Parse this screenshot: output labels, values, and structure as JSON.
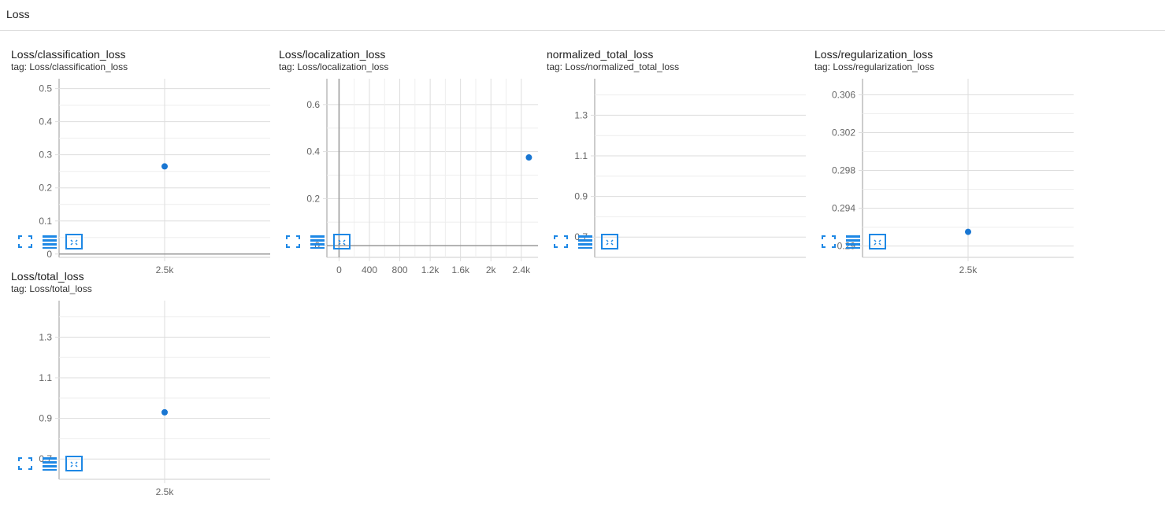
{
  "header": {
    "title": "Loss"
  },
  "colors": {
    "point": "#1976d2",
    "grid": "#dddddd",
    "axis": "#999999",
    "zero_line": "#999999",
    "icon": "#1e88e5"
  },
  "toolbar_icons": [
    "fullscreen-icon",
    "data-list-icon",
    "fit-domain-icon"
  ],
  "cards": [
    {
      "title": "Loss/classification_loss",
      "tag": "tag: Loss/classification_loss",
      "chart_data": {
        "type": "scatter",
        "x": [
          2500
        ],
        "y": [
          0.265
        ],
        "xlim": [
          2300,
          2700
        ],
        "ylim": [
          -0.01,
          0.53
        ],
        "xticks": [
          2500
        ],
        "xtick_labels": [
          "2.5k"
        ],
        "yticks": [
          0,
          0.1,
          0.2,
          0.3,
          0.4,
          0.5
        ],
        "ytick_labels": [
          "0",
          "0.1",
          "0.2",
          "0.3",
          "0.4",
          "0.5"
        ],
        "minor_yticks": [
          0.05,
          0.15,
          0.25,
          0.35,
          0.45
        ],
        "grid": true,
        "zero_line": true
      }
    },
    {
      "title": "Loss/localization_loss",
      "tag": "tag: Loss/localization_loss",
      "chart_data": {
        "type": "scatter",
        "x": [
          2500
        ],
        "y": [
          0.375
        ],
        "xlim": [
          -160,
          2620
        ],
        "ylim": [
          -0.05,
          0.71
        ],
        "xticks": [
          0,
          400,
          800,
          1200,
          1600,
          2000,
          2400
        ],
        "xtick_labels": [
          "0",
          "400",
          "800",
          "1.2k",
          "1.6k",
          "2k",
          "2.4k"
        ],
        "minor_xticks": [
          200,
          600,
          1000,
          1400,
          1800,
          2200
        ],
        "yticks": [
          0,
          0.2,
          0.4,
          0.6
        ],
        "ytick_labels": [
          "0",
          "0.2",
          "0.4",
          "0.6"
        ],
        "minor_yticks": [
          0.1,
          0.3,
          0.5
        ],
        "grid": true,
        "zero_line": true,
        "x_zero_line": true
      }
    },
    {
      "title": "normalized_total_loss",
      "tag": "tag: Loss/normalized_total_loss",
      "chart_data": {
        "type": "scatter",
        "x": [],
        "y": [],
        "xlim": [
          0,
          1
        ],
        "ylim": [
          0.6,
          1.48
        ],
        "xticks": [],
        "xtick_labels": [],
        "yticks": [
          0.7,
          0.9,
          1.1,
          1.3
        ],
        "ytick_labels": [
          "0.7",
          "0.9",
          "1.1",
          "1.3"
        ],
        "minor_yticks": [
          0.8,
          1.0,
          1.2,
          1.4
        ],
        "grid": true,
        "zero_line": false
      }
    },
    {
      "title": "Loss/regularization_loss",
      "tag": "tag: Loss/regularization_loss",
      "chart_data": {
        "type": "scatter",
        "x": [
          2500
        ],
        "y": [
          0.2915
        ],
        "xlim": [
          2300,
          2700
        ],
        "ylim": [
          0.2888,
          0.3077
        ],
        "xticks": [
          2500
        ],
        "xtick_labels": [
          "2.5k"
        ],
        "yticks": [
          0.29,
          0.294,
          0.298,
          0.302,
          0.306
        ],
        "ytick_labels": [
          "0.29",
          "0.294",
          "0.298",
          "0.302",
          "0.306"
        ],
        "minor_yticks": [
          0.292,
          0.296,
          0.3,
          0.304
        ],
        "grid": true,
        "zero_line": false
      }
    },
    {
      "title": "Loss/total_loss",
      "tag": "tag: Loss/total_loss",
      "chart_data": {
        "type": "scatter",
        "x": [
          2500
        ],
        "y": [
          0.93
        ],
        "xlim": [
          2300,
          2700
        ],
        "ylim": [
          0.6,
          1.48
        ],
        "xticks": [
          2500
        ],
        "xtick_labels": [
          "2.5k"
        ],
        "yticks": [
          0.7,
          0.9,
          1.1,
          1.3
        ],
        "ytick_labels": [
          "0.7",
          "0.9",
          "1.1",
          "1.3"
        ],
        "minor_yticks": [
          0.8,
          1.0,
          1.2,
          1.4
        ],
        "grid": true,
        "zero_line": false
      }
    }
  ]
}
